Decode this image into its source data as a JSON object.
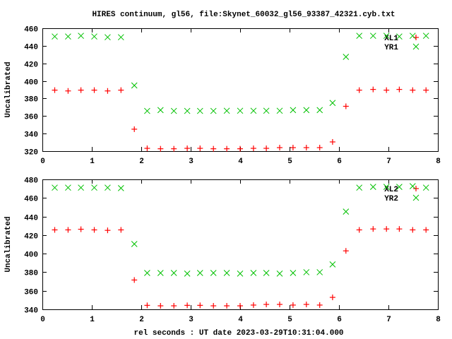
{
  "title": "HIRES continuum, gl56, file:Skynet_60032_gl56_93387_42321.cyb.txt",
  "xlabel": "rel seconds : UT date 2023-03-29T10:31:04.000",
  "colors": {
    "XL": "#ff0000",
    "YR": "#00c000",
    "axis": "#000000"
  },
  "chart_data": [
    {
      "type": "scatter",
      "ylabel": "Uncalibrated",
      "xlim": [
        0,
        8
      ],
      "ylim": [
        320,
        460
      ],
      "xticks": [
        0,
        1,
        2,
        3,
        4,
        5,
        6,
        7,
        8
      ],
      "yticks": [
        320,
        340,
        360,
        380,
        400,
        420,
        440,
        460
      ],
      "legend": "top-right",
      "x": [
        0.25,
        0.52,
        0.78,
        1.05,
        1.32,
        1.59,
        1.86,
        2.12,
        2.39,
        2.66,
        2.93,
        3.19,
        3.46,
        3.73,
        4.0,
        4.27,
        4.53,
        4.8,
        5.07,
        5.34,
        5.61,
        5.87,
        6.14,
        6.41,
        6.69,
        6.96,
        7.22,
        7.49,
        7.76
      ],
      "series": [
        {
          "name": "XL1",
          "marker": "plus",
          "color": "#ff0000",
          "values": [
            389.5,
            388.6,
            389.5,
            389.5,
            388.6,
            389.5,
            345.0,
            323.2,
            322.7,
            322.7,
            323.2,
            323.2,
            322.7,
            322.7,
            322.7,
            323.2,
            323.2,
            324.0,
            324.0,
            324.0,
            324.0,
            330.5,
            371.1,
            389.5,
            390.3,
            389.5,
            390.3,
            389.5,
            389.5
          ]
        },
        {
          "name": "YR1",
          "marker": "cross",
          "color": "#00c000",
          "values": [
            450.6,
            450.6,
            451.4,
            450.6,
            449.8,
            449.8,
            394.8,
            365.8,
            366.8,
            365.8,
            365.8,
            365.8,
            365.8,
            366.0,
            366.0,
            366.0,
            366.0,
            366.0,
            366.8,
            366.8,
            366.8,
            374.9,
            427.4,
            451.4,
            451.4,
            451.4,
            450.6,
            451.4,
            451.4
          ]
        }
      ]
    },
    {
      "type": "scatter",
      "ylabel": "Uncalibrated",
      "xlim": [
        0,
        8
      ],
      "ylim": [
        340,
        480
      ],
      "xticks": [
        0,
        1,
        2,
        3,
        4,
        5,
        6,
        7,
        8
      ],
      "yticks": [
        340,
        360,
        380,
        400,
        420,
        440,
        460,
        480
      ],
      "legend": "top-right",
      "x": [
        0.25,
        0.52,
        0.78,
        1.05,
        1.32,
        1.59,
        1.86,
        2.12,
        2.39,
        2.66,
        2.93,
        3.19,
        3.46,
        3.73,
        4.0,
        4.27,
        4.53,
        4.8,
        5.07,
        5.34,
        5.61,
        5.87,
        6.14,
        6.41,
        6.69,
        6.96,
        7.22,
        7.49,
        7.76
      ],
      "series": [
        {
          "name": "XL2",
          "marker": "plus",
          "color": "#ff0000",
          "values": [
            425.6,
            425.6,
            426.3,
            425.6,
            425.1,
            425.6,
            371.6,
            344.3,
            343.8,
            343.8,
            344.3,
            344.3,
            343.8,
            343.8,
            343.8,
            344.6,
            345.3,
            345.3,
            344.6,
            345.3,
            344.6,
            352.9,
            403.0,
            425.6,
            426.6,
            426.6,
            426.6,
            425.6,
            425.6
          ]
        },
        {
          "name": "YR2",
          "marker": "cross",
          "color": "#00c000",
          "values": [
            471.1,
            471.1,
            471.1,
            471.1,
            471.1,
            470.6,
            410.4,
            379.2,
            379.2,
            379.2,
            378.5,
            379.2,
            379.2,
            379.2,
            378.5,
            379.2,
            379.2,
            378.5,
            379.2,
            380.0,
            380.0,
            388.4,
            445.3,
            471.1,
            471.9,
            471.9,
            471.9,
            472.7,
            471.1
          ]
        }
      ]
    }
  ]
}
